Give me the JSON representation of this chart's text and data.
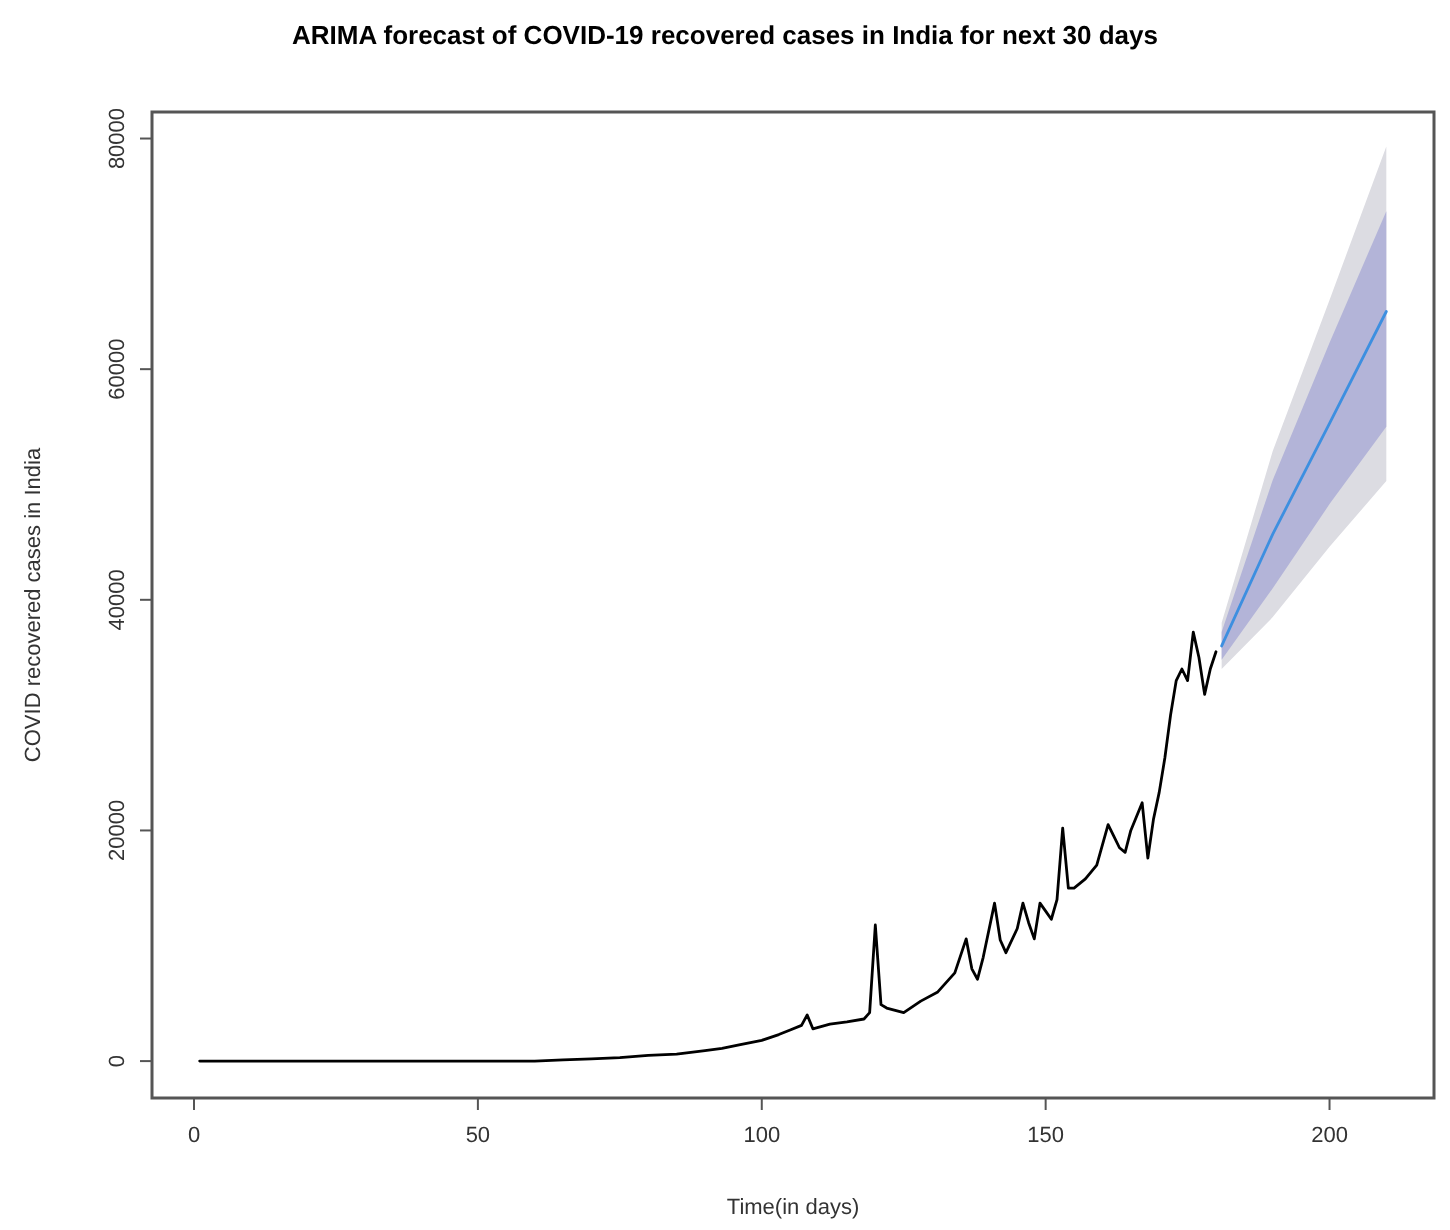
{
  "chart_data": {
    "type": "line",
    "title": "ARIMA forecast of COVID-19 recovered cases in India for next 30 days",
    "xlabel": "Time(in days)",
    "ylabel": "COVID recovered cases in India",
    "xlim": [
      -7.4,
      218.4
    ],
    "ylim": [
      -3200,
      82300
    ],
    "xticks": [
      0,
      50,
      100,
      150,
      200
    ],
    "yticks": [
      0,
      20000,
      40000,
      60000,
      80000
    ],
    "grid": false,
    "line_style": "solid",
    "marker": "none",
    "series": [
      {
        "color": "#000000",
        "x": [
          1,
          10,
          20,
          30,
          40,
          50,
          60,
          65,
          70,
          75,
          80,
          85,
          90,
          93,
          96,
          100,
          103,
          105,
          107,
          108,
          109,
          112,
          115,
          118,
          119,
          120,
          121,
          122,
          125,
          128,
          131,
          134,
          136,
          137,
          138,
          139,
          141,
          142,
          143,
          145,
          146,
          147,
          148,
          149,
          150,
          151,
          152,
          153,
          154,
          155,
          157,
          159,
          161,
          162,
          163,
          164,
          165,
          167,
          168,
          169,
          170,
          171,
          172,
          173,
          174,
          175,
          176,
          177,
          178,
          179,
          180
        ],
        "values": [
          0,
          0,
          0,
          0,
          0,
          0,
          0,
          100,
          200,
          300,
          500,
          600,
          900,
          1100,
          1400,
          1800,
          2300,
          2700,
          3100,
          4000,
          2800,
          3200,
          3400,
          3650,
          4200,
          11800,
          4900,
          4600,
          4200,
          5200,
          6000,
          7650,
          10600,
          8000,
          7100,
          9000,
          13700,
          10500,
          9400,
          11500,
          13700,
          12000,
          10600,
          13700,
          13000,
          12300,
          14000,
          20200,
          15000,
          15000,
          15800,
          17000,
          20500,
          19500,
          18500,
          18100,
          20000,
          22400,
          17600,
          21000,
          23300,
          26300,
          30000,
          33000,
          34000,
          33000,
          37200,
          35000,
          31800,
          34000,
          35500
        ]
      },
      {
        "color": "#3d8fe0",
        "x": [
          181,
          190,
          200,
          210
        ],
        "values": [
          36000,
          45700,
          55300,
          65000
        ],
        "lower": [
          34000,
          38500,
          44600,
          50300
        ],
        "upper": [
          38000,
          52900,
          66000,
          79300
        ]
      },
      {
        "color": "#b3b4d8",
        "x": [
          181,
          190,
          200,
          210
        ],
        "values": [
          null,
          null,
          null,
          null
        ],
        "lower": [
          34800,
          41000,
          48300,
          55000
        ],
        "upper": [
          37200,
          50400,
          62300,
          73700
        ]
      }
    ]
  }
}
